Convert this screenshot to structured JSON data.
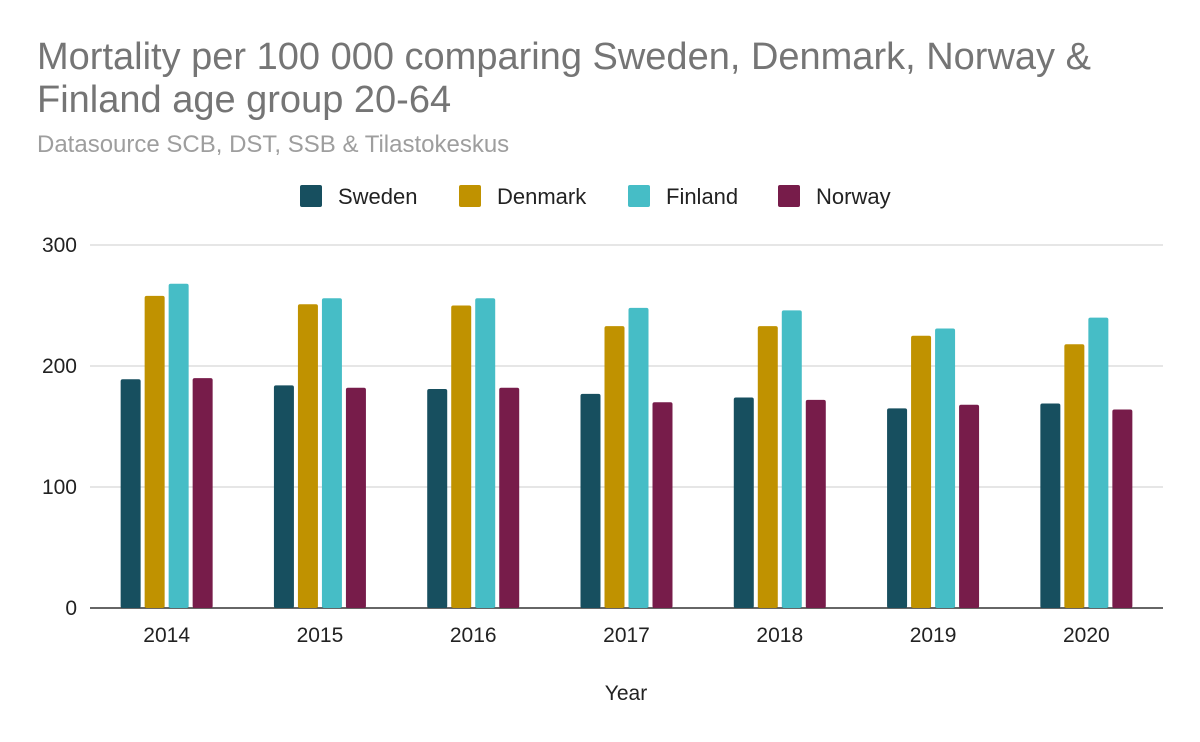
{
  "chart_data": {
    "type": "bar",
    "title": "Mortality per 100 000 comparing Sweden, Denmark, Norway & Finland age group 20-64",
    "subtitle": "Datasource SCB, DST, SSB & Tilastokeskus",
    "xlabel": "Year",
    "ylabel": "",
    "ylim": [
      0,
      300
    ],
    "yticks": [
      0,
      100,
      200,
      300
    ],
    "grid": true,
    "legend_position": "top",
    "categories": [
      "2014",
      "2015",
      "2016",
      "2017",
      "2018",
      "2019",
      "2020"
    ],
    "series": [
      {
        "name": "Sweden",
        "color": "#174f5f",
        "values": [
          189,
          184,
          181,
          177,
          174,
          165,
          169
        ]
      },
      {
        "name": "Denmark",
        "color": "#c09200",
        "values": [
          258,
          251,
          250,
          233,
          233,
          225,
          218
        ]
      },
      {
        "name": "Finland",
        "color": "#46bdc6",
        "values": [
          268,
          256,
          256,
          248,
          246,
          231,
          240
        ]
      },
      {
        "name": "Norway",
        "color": "#771c4a",
        "values": [
          190,
          182,
          182,
          170,
          172,
          168,
          164
        ]
      }
    ]
  }
}
